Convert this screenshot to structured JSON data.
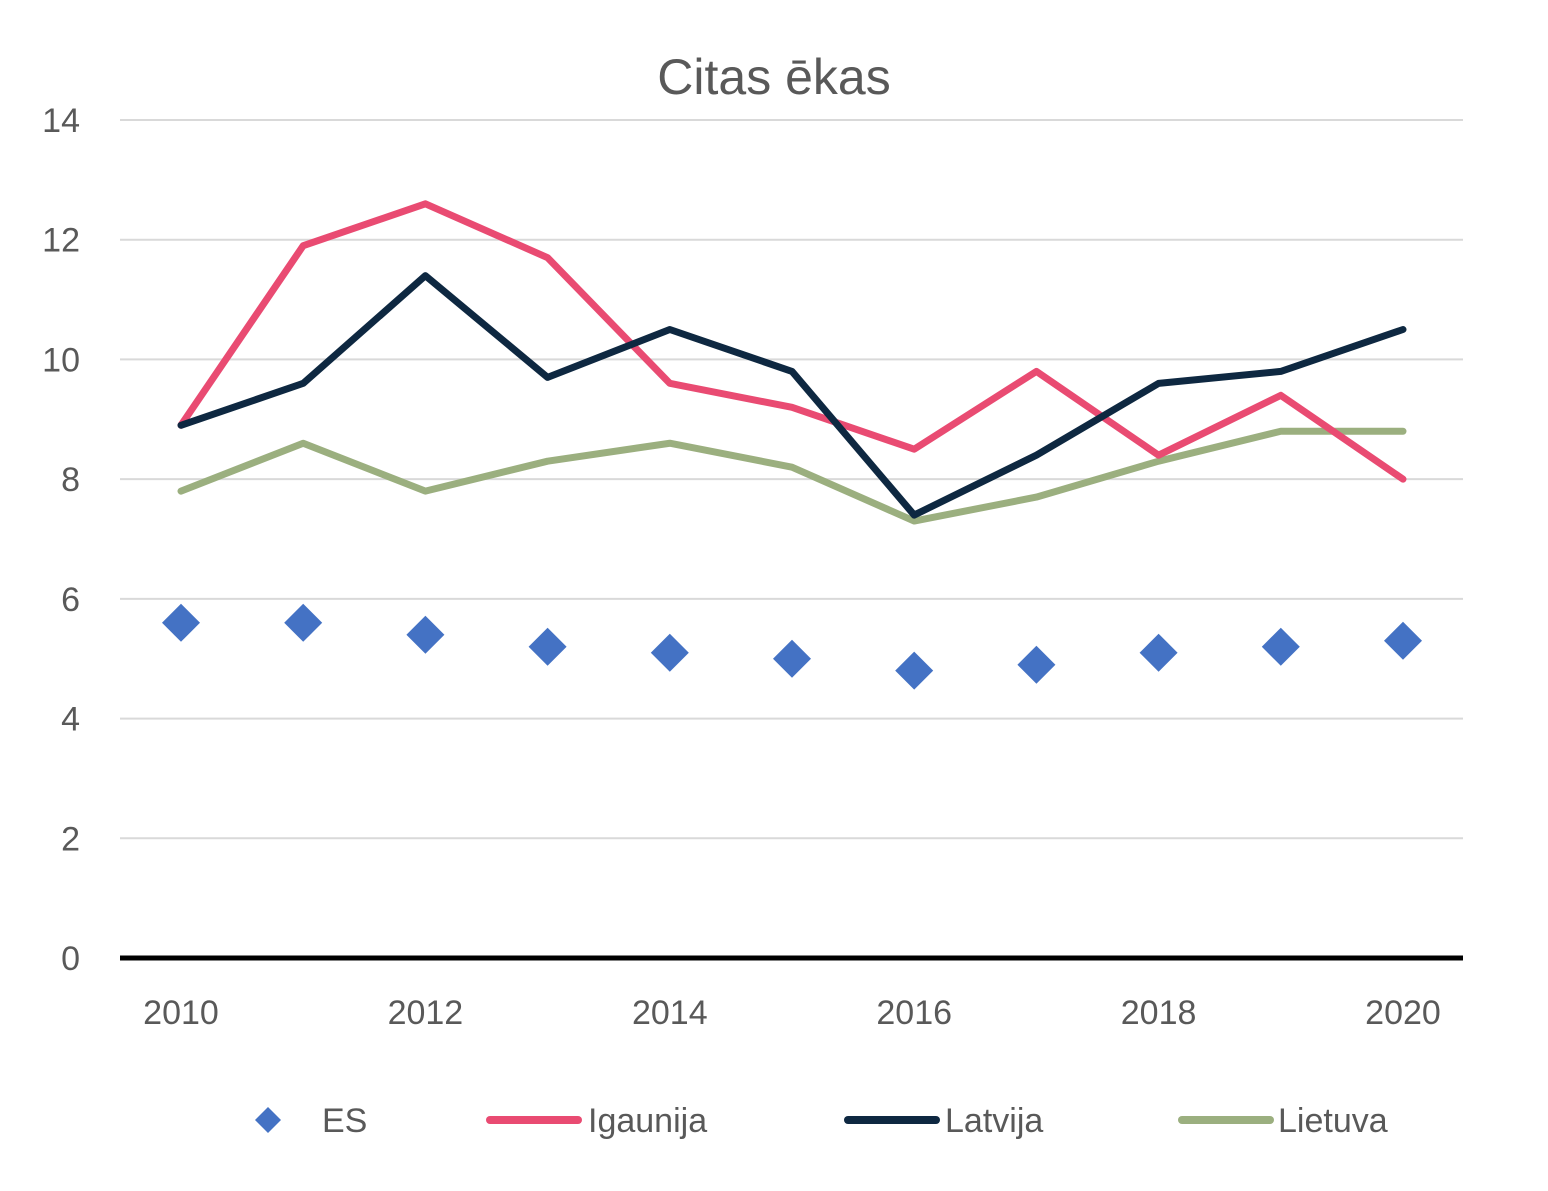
{
  "chart_data": {
    "type": "line",
    "title": "Citas ēkas",
    "xlabel": "",
    "ylabel": "",
    "x": [
      2010,
      2011,
      2012,
      2013,
      2014,
      2015,
      2016,
      2017,
      2018,
      2019,
      2020
    ],
    "x_tick_labels": [
      "2010",
      "2012",
      "2014",
      "2016",
      "2018",
      "2020"
    ],
    "ylim": [
      0,
      14
    ],
    "y_ticks": [
      0,
      2,
      4,
      6,
      8,
      10,
      12,
      14
    ],
    "grid": true,
    "legend_position": "bottom",
    "series": [
      {
        "name": "ES",
        "marker": "diamond",
        "line": false,
        "color": "#4472C4",
        "values": [
          5.6,
          5.6,
          5.4,
          5.2,
          5.1,
          5.0,
          4.8,
          4.9,
          5.1,
          5.2,
          5.3
        ]
      },
      {
        "name": "Igaunija",
        "marker": "none",
        "line": true,
        "color": "#E94B72",
        "values": [
          8.9,
          11.9,
          12.6,
          11.7,
          9.6,
          9.2,
          8.5,
          9.8,
          8.4,
          9.4,
          8.0
        ]
      },
      {
        "name": "Latvija",
        "marker": "none",
        "line": true,
        "color": "#0E2841",
        "values": [
          8.9,
          9.6,
          11.4,
          9.7,
          10.5,
          9.8,
          7.4,
          8.4,
          9.6,
          9.8,
          10.5
        ]
      },
      {
        "name": "Lietuva",
        "marker": "none",
        "line": true,
        "color": "#9BAF7F",
        "values": [
          7.8,
          8.6,
          7.8,
          8.3,
          8.6,
          8.2,
          7.3,
          7.7,
          8.3,
          8.8,
          8.8
        ]
      }
    ]
  }
}
